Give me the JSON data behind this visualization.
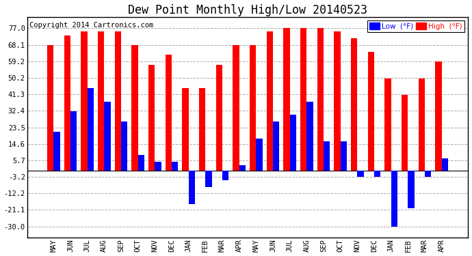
{
  "title": "Dew Point Monthly High/Low 20140523",
  "copyright": "Copyright 2014 Cartronics.com",
  "categories": [
    "MAY",
    "JUN",
    "JUL",
    "AUG",
    "SEP",
    "OCT",
    "NOV",
    "DEC",
    "JAN",
    "FEB",
    "MAR",
    "APR",
    "MAY",
    "JUN",
    "JUL",
    "AUG",
    "SEP",
    "OCT",
    "NOV",
    "DEC",
    "JAN",
    "FEB",
    "MAR",
    "APR"
  ],
  "high_values": [
    68.1,
    73.0,
    75.2,
    75.2,
    75.2,
    68.1,
    57.2,
    62.6,
    44.6,
    44.6,
    57.2,
    68.1,
    68.1,
    75.2,
    77.0,
    77.0,
    77.0,
    75.2,
    71.6,
    64.4,
    50.0,
    41.0,
    50.0,
    59.0
  ],
  "low_values": [
    21.2,
    32.0,
    44.6,
    37.4,
    26.6,
    8.6,
    5.0,
    5.0,
    -17.8,
    -8.6,
    -5.0,
    3.2,
    17.6,
    26.6,
    30.2,
    37.4,
    15.8,
    15.8,
    -3.2,
    -3.2,
    -30.0,
    -20.0,
    -3.2,
    6.8
  ],
  "yticks": [
    -30.0,
    -21.1,
    -12.2,
    -3.2,
    5.7,
    14.6,
    23.5,
    32.4,
    41.3,
    50.2,
    59.2,
    68.1,
    77.0
  ],
  "ylim": [
    -36,
    83
  ],
  "bar_width": 0.38,
  "high_color": "#FF0000",
  "low_color": "#0000FF",
  "bg_color": "#FFFFFF",
  "grid_color": "#AAAAAA",
  "title_fontsize": 12,
  "copyright_fontsize": 7.5,
  "border_color": "#000000"
}
